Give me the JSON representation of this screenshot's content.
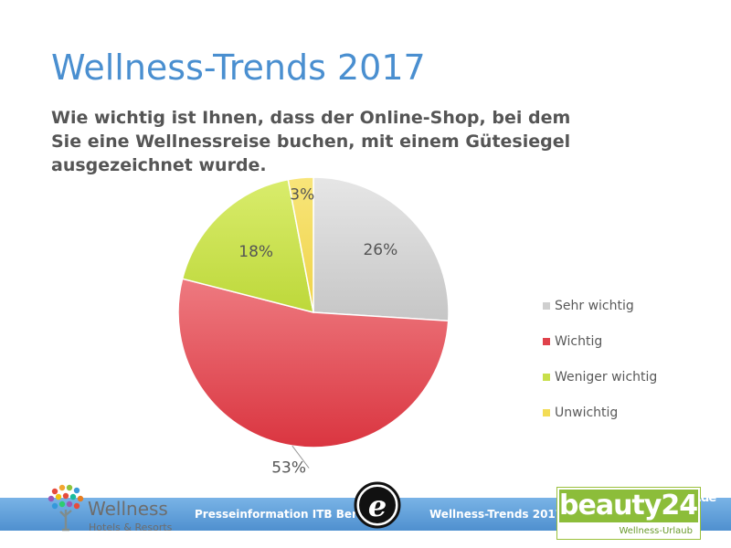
{
  "slide": {
    "title": "Wellness-Trends 2017",
    "question": "Wie wichtig ist Ihnen, dass der Online-Shop, bei dem Sie eine Wellnessreise buchen, mit einem Gütesiegel ausgezeichnet wurde."
  },
  "chart_data": {
    "type": "pie",
    "categories": [
      "Sehr wichtig",
      "Wichtig",
      "Weniger wichtig",
      "Unwichtig"
    ],
    "values": [
      26,
      53,
      18,
      3
    ],
    "value_labels": [
      "26%",
      "53%",
      "18%",
      "3%"
    ],
    "colors": [
      "#cfcfcf",
      "#e0424b",
      "#c8df4a",
      "#f3dc55"
    ],
    "legend_position": "right",
    "title": ""
  },
  "footer": {
    "press_label": "Presseinformation ITB Berlin",
    "trend_label": "Wellness-Trends 2017",
    "left_logo_word": "Wellness",
    "left_logo_sub": "Hotels & Resorts",
    "center_logo_letter": "e",
    "right_logo_main": "beauty24",
    "right_logo_sup": ".de",
    "right_logo_sub": "Wellness-Urlaub",
    "bar_color": "#5a9ad6"
  }
}
